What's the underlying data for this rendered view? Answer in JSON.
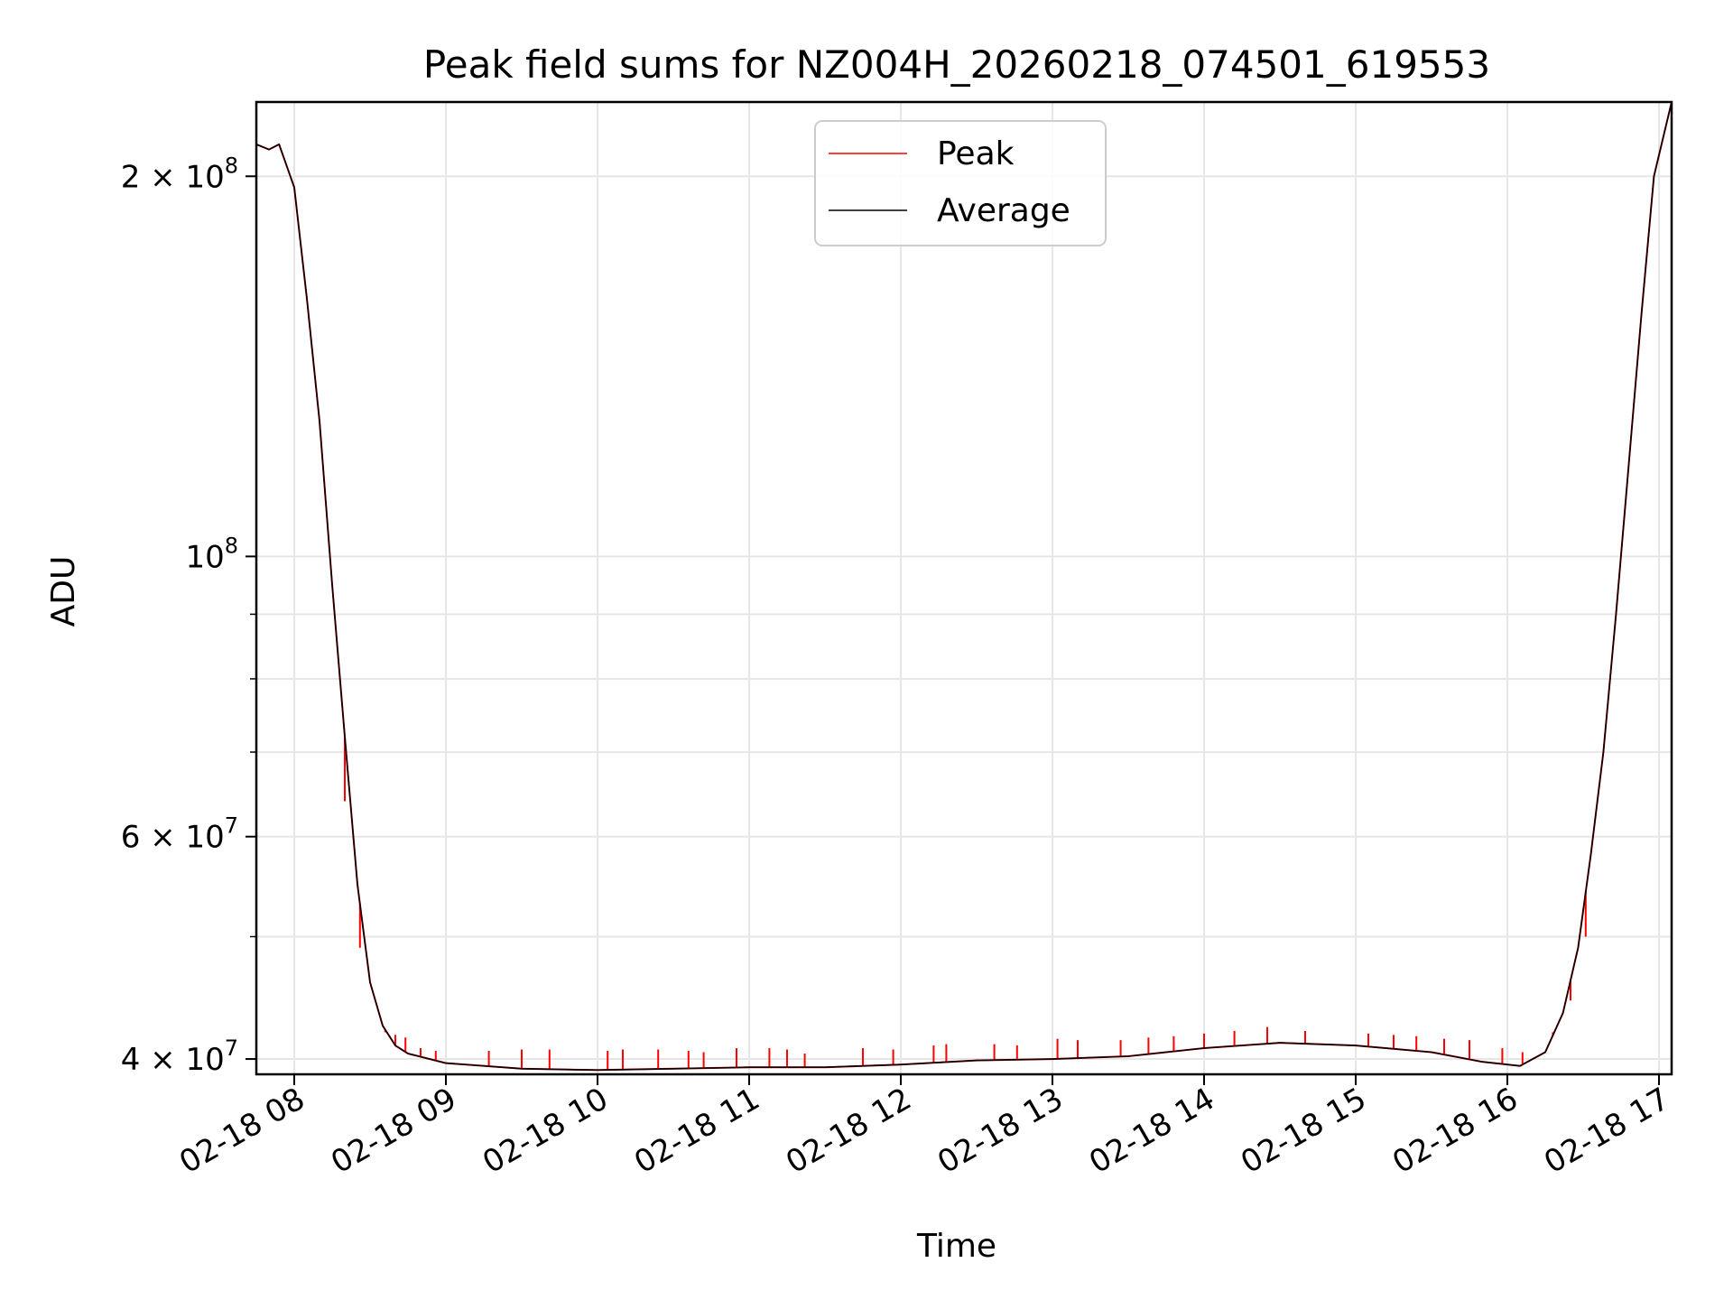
{
  "chart_data": {
    "type": "line",
    "title": "Peak field sums for NZ004H_20260218_074501_619553",
    "xlabel": "Time",
    "ylabel": "ADU",
    "x_scale": "time",
    "y_scale": "log",
    "xlim": [
      "2026-02-18 07:45",
      "2026-02-18 17:05"
    ],
    "ylim": [
      38900000,
      229000000
    ],
    "grid": true,
    "legend_position": "upper center",
    "x_ticks": [
      {
        "value": "2026-02-18 08:00",
        "label": "02-18 08"
      },
      {
        "value": "2026-02-18 09:00",
        "label": "02-18 09"
      },
      {
        "value": "2026-02-18 10:00",
        "label": "02-18 10"
      },
      {
        "value": "2026-02-18 11:00",
        "label": "02-18 11"
      },
      {
        "value": "2026-02-18 12:00",
        "label": "02-18 12"
      },
      {
        "value": "2026-02-18 13:00",
        "label": "02-18 13"
      },
      {
        "value": "2026-02-18 14:00",
        "label": "02-18 14"
      },
      {
        "value": "2026-02-18 15:00",
        "label": "02-18 15"
      },
      {
        "value": "2026-02-18 16:00",
        "label": "02-18 16"
      },
      {
        "value": "2026-02-18 17:00",
        "label": "02-18 17"
      }
    ],
    "y_major_ticks": [
      {
        "value": 40000000,
        "mantissa": "4 × 10",
        "exponent": "7"
      },
      {
        "value": 60000000,
        "mantissa": "6 × 10",
        "exponent": "7"
      },
      {
        "value": 100000000,
        "mantissa": "10",
        "exponent": "8"
      },
      {
        "value": 200000000,
        "mantissa": "2 × 10",
        "exponent": "8"
      }
    ],
    "y_minor_ticks": [
      50000000,
      70000000,
      80000000,
      90000000
    ],
    "series": [
      {
        "name": "Peak",
        "color": "#ff0000",
        "points": [
          [
            "2026-02-18 07:45",
            212000000
          ],
          [
            "2026-02-18 07:50",
            210000000
          ],
          [
            "2026-02-18 07:54",
            212000000
          ],
          [
            "2026-02-18 08:00",
            196000000
          ],
          [
            "2026-02-18 08:05",
            160000000
          ],
          [
            "2026-02-18 08:10",
            128000000
          ],
          [
            "2026-02-18 08:15",
            95000000
          ],
          [
            "2026-02-18 08:20",
            72000000
          ],
          [
            "2026-02-18 08:25",
            55000000
          ],
          [
            "2026-02-18 08:30",
            46000000
          ],
          [
            "2026-02-18 08:35",
            42500000
          ],
          [
            "2026-02-18 08:40",
            41000000
          ],
          [
            "2026-02-18 08:45",
            40400000
          ],
          [
            "2026-02-18 09:00",
            39700000
          ],
          [
            "2026-02-18 09:30",
            39300000
          ],
          [
            "2026-02-18 10:00",
            39200000
          ],
          [
            "2026-02-18 10:30",
            39300000
          ],
          [
            "2026-02-18 11:00",
            39400000
          ],
          [
            "2026-02-18 11:30",
            39400000
          ],
          [
            "2026-02-18 12:00",
            39600000
          ],
          [
            "2026-02-18 12:30",
            39900000
          ],
          [
            "2026-02-18 13:00",
            40000000
          ],
          [
            "2026-02-18 13:30",
            40200000
          ],
          [
            "2026-02-18 14:00",
            40800000
          ],
          [
            "2026-02-18 14:30",
            41200000
          ],
          [
            "2026-02-18 15:00",
            41000000
          ],
          [
            "2026-02-18 15:30",
            40500000
          ],
          [
            "2026-02-18 15:50",
            39800000
          ],
          [
            "2026-02-18 16:05",
            39500000
          ],
          [
            "2026-02-18 16:15",
            40500000
          ],
          [
            "2026-02-18 16:22",
            43500000
          ],
          [
            "2026-02-18 16:28",
            49000000
          ],
          [
            "2026-02-18 16:33",
            58000000
          ],
          [
            "2026-02-18 16:38",
            70000000
          ],
          [
            "2026-02-18 16:43",
            90000000
          ],
          [
            "2026-02-18 16:48",
            118000000
          ],
          [
            "2026-02-18 16:53",
            155000000
          ],
          [
            "2026-02-18 16:58",
            200000000
          ],
          [
            "2026-02-18 17:05",
            229000000
          ]
        ],
        "spikes": [
          [
            "2026-02-18 08:36",
            42000000
          ],
          [
            "2026-02-18 08:40",
            41800000
          ],
          [
            "2026-02-18 08:44",
            41600000
          ],
          [
            "2026-02-18 08:50",
            40800000
          ],
          [
            "2026-02-18 08:56",
            40600000
          ],
          [
            "2026-02-18 09:17",
            40600000
          ],
          [
            "2026-02-18 09:30",
            40700000
          ],
          [
            "2026-02-18 09:41",
            40700000
          ],
          [
            "2026-02-18 10:04",
            40600000
          ],
          [
            "2026-02-18 10:10",
            40700000
          ],
          [
            "2026-02-18 10:24",
            40700000
          ],
          [
            "2026-02-18 10:36",
            40600000
          ],
          [
            "2026-02-18 10:42",
            40500000
          ],
          [
            "2026-02-18 10:55",
            40800000
          ],
          [
            "2026-02-18 11:08",
            40800000
          ],
          [
            "2026-02-18 11:15",
            40700000
          ],
          [
            "2026-02-18 11:22",
            40400000
          ],
          [
            "2026-02-18 11:45",
            40800000
          ],
          [
            "2026-02-18 11:57",
            40700000
          ],
          [
            "2026-02-18 12:13",
            41000000
          ],
          [
            "2026-02-18 12:18",
            41100000
          ],
          [
            "2026-02-18 12:37",
            41100000
          ],
          [
            "2026-02-18 12:46",
            41000000
          ],
          [
            "2026-02-18 13:02",
            41500000
          ],
          [
            "2026-02-18 13:10",
            41400000
          ],
          [
            "2026-02-18 13:27",
            41400000
          ],
          [
            "2026-02-18 13:38",
            41600000
          ],
          [
            "2026-02-18 13:48",
            41700000
          ],
          [
            "2026-02-18 14:00",
            41900000
          ],
          [
            "2026-02-18 14:12",
            42100000
          ],
          [
            "2026-02-18 14:25",
            42400000
          ],
          [
            "2026-02-18 14:40",
            42100000
          ],
          [
            "2026-02-18 15:05",
            41900000
          ],
          [
            "2026-02-18 15:15",
            41800000
          ],
          [
            "2026-02-18 15:24",
            41700000
          ],
          [
            "2026-02-18 15:35",
            41500000
          ],
          [
            "2026-02-18 15:45",
            41400000
          ],
          [
            "2026-02-18 15:58",
            40800000
          ],
          [
            "2026-02-18 16:06",
            40500000
          ],
          [
            "2026-02-18 16:18",
            42000000
          ],
          [
            "2026-02-18 16:25",
            44500000
          ],
          [
            "2026-02-18 16:31",
            50000000
          ],
          [
            "2026-02-18 08:20",
            64000000
          ],
          [
            "2026-02-18 08:26",
            49000000
          ]
        ]
      },
      {
        "name": "Average",
        "color": "#000000",
        "points": [
          [
            "2026-02-18 07:45",
            212000000
          ],
          [
            "2026-02-18 07:50",
            210000000
          ],
          [
            "2026-02-18 07:54",
            212000000
          ],
          [
            "2026-02-18 08:00",
            196000000
          ],
          [
            "2026-02-18 08:05",
            160000000
          ],
          [
            "2026-02-18 08:10",
            128000000
          ],
          [
            "2026-02-18 08:15",
            95000000
          ],
          [
            "2026-02-18 08:20",
            72000000
          ],
          [
            "2026-02-18 08:25",
            55000000
          ],
          [
            "2026-02-18 08:30",
            46000000
          ],
          [
            "2026-02-18 08:35",
            42500000
          ],
          [
            "2026-02-18 08:40",
            41000000
          ],
          [
            "2026-02-18 08:45",
            40400000
          ],
          [
            "2026-02-18 09:00",
            39700000
          ],
          [
            "2026-02-18 09:30",
            39300000
          ],
          [
            "2026-02-18 10:00",
            39200000
          ],
          [
            "2026-02-18 10:30",
            39300000
          ],
          [
            "2026-02-18 11:00",
            39400000
          ],
          [
            "2026-02-18 11:30",
            39400000
          ],
          [
            "2026-02-18 12:00",
            39600000
          ],
          [
            "2026-02-18 12:30",
            39900000
          ],
          [
            "2026-02-18 13:00",
            40000000
          ],
          [
            "2026-02-18 13:30",
            40200000
          ],
          [
            "2026-02-18 14:00",
            40800000
          ],
          [
            "2026-02-18 14:30",
            41200000
          ],
          [
            "2026-02-18 15:00",
            41000000
          ],
          [
            "2026-02-18 15:30",
            40500000
          ],
          [
            "2026-02-18 15:50",
            39800000
          ],
          [
            "2026-02-18 16:05",
            39500000
          ],
          [
            "2026-02-18 16:15",
            40500000
          ],
          [
            "2026-02-18 16:22",
            43500000
          ],
          [
            "2026-02-18 16:28",
            49000000
          ],
          [
            "2026-02-18 16:33",
            58000000
          ],
          [
            "2026-02-18 16:38",
            70000000
          ],
          [
            "2026-02-18 16:43",
            90000000
          ],
          [
            "2026-02-18 16:48",
            118000000
          ],
          [
            "2026-02-18 16:53",
            155000000
          ],
          [
            "2026-02-18 16:58",
            200000000
          ],
          [
            "2026-02-18 17:05",
            229000000
          ]
        ]
      }
    ]
  }
}
